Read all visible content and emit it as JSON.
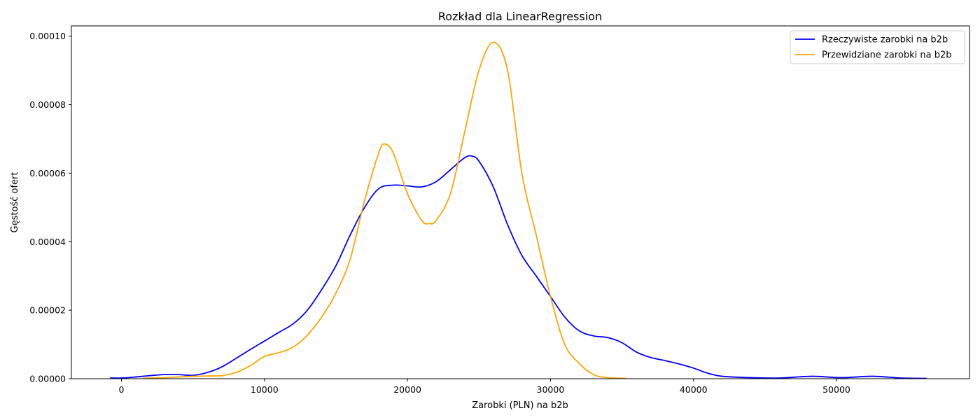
{
  "chart_data": {
    "type": "line",
    "title": "Rozkład dla LinearRegression",
    "xlabel": "Zarobki (PLN) na b2b",
    "ylabel": "Gęstość ofert",
    "xlim": [
      -3500,
      59300
    ],
    "ylim": [
      0,
      0.000103
    ],
    "x_ticks": [
      0,
      10000,
      20000,
      30000,
      40000,
      50000
    ],
    "x_tick_labels": [
      "0",
      "10000",
      "20000",
      "30000",
      "40000",
      "50000"
    ],
    "y_ticks": [
      0,
      2e-05,
      4e-05,
      6e-05,
      8e-05,
      0.0001
    ],
    "y_tick_labels": [
      "0.00000",
      "0.00002",
      "0.00004",
      "0.00006",
      "0.00008",
      "0.00010"
    ],
    "grid": false,
    "legend_position": "top-right",
    "series": [
      {
        "name": "Rzeczywiste zarobki na b2b",
        "color": "#0000ff",
        "points": [
          [
            -800,
            2e-07
          ],
          [
            0,
            2e-07
          ],
          [
            1000,
            5e-07
          ],
          [
            2000,
            9e-07
          ],
          [
            3000,
            1.2e-06
          ],
          [
            4000,
            1.2e-06
          ],
          [
            5000,
            1e-06
          ],
          [
            6000,
            1.8e-06
          ],
          [
            7000,
            3.4e-06
          ],
          [
            8000,
            5.9e-06
          ],
          [
            9000,
            8.5e-06
          ],
          [
            10000,
            1.1e-05
          ],
          [
            11000,
            1.35e-05
          ],
          [
            12000,
            1.6e-05
          ],
          [
            13000,
            2e-05
          ],
          [
            14000,
            2.6e-05
          ],
          [
            15000,
            3.3e-05
          ],
          [
            16000,
            4.2e-05
          ],
          [
            17000,
            5e-05
          ],
          [
            18000,
            5.55e-05
          ],
          [
            19000,
            5.65e-05
          ],
          [
            20000,
            5.63e-05
          ],
          [
            21000,
            5.6e-05
          ],
          [
            22000,
            5.75e-05
          ],
          [
            23000,
            6.1e-05
          ],
          [
            24000,
            6.45e-05
          ],
          [
            24500,
            6.5e-05
          ],
          [
            25000,
            6.35e-05
          ],
          [
            26000,
            5.6e-05
          ],
          [
            27000,
            4.5e-05
          ],
          [
            28000,
            3.6e-05
          ],
          [
            29000,
            3e-05
          ],
          [
            30000,
            2.4e-05
          ],
          [
            31000,
            1.8e-05
          ],
          [
            32000,
            1.4e-05
          ],
          [
            33000,
            1.25e-05
          ],
          [
            34000,
            1.2e-05
          ],
          [
            35000,
            1.05e-05
          ],
          [
            36000,
            7.8e-06
          ],
          [
            37000,
            6.2e-06
          ],
          [
            38000,
            5.3e-06
          ],
          [
            39000,
            4.3e-06
          ],
          [
            40000,
            3.1e-06
          ],
          [
            41000,
            1.6e-06
          ],
          [
            42000,
            7e-07
          ],
          [
            44000,
            3e-07
          ],
          [
            46000,
            2e-07
          ],
          [
            48300,
            7e-07
          ],
          [
            50300,
            3e-07
          ],
          [
            52500,
            7e-07
          ],
          [
            54500,
            2e-07
          ],
          [
            56300,
            1e-07
          ]
        ]
      },
      {
        "name": "Przewidziane zarobki na b2b",
        "color": "#ffa500",
        "points": [
          [
            1500,
            1e-07
          ],
          [
            2000,
            2e-07
          ],
          [
            3000,
            3e-07
          ],
          [
            4000,
            5e-07
          ],
          [
            5000,
            7e-07
          ],
          [
            6000,
            8e-07
          ],
          [
            7000,
            9e-07
          ],
          [
            8000,
            1.8e-06
          ],
          [
            9000,
            3.8e-06
          ],
          [
            10000,
            6.5e-06
          ],
          [
            11000,
            7.6e-06
          ],
          [
            12000,
            9.2e-06
          ],
          [
            13000,
            1.27e-05
          ],
          [
            14000,
            1.8e-05
          ],
          [
            15000,
            2.5e-05
          ],
          [
            16000,
            3.5e-05
          ],
          [
            17000,
            5.2e-05
          ],
          [
            18000,
            6.6e-05
          ],
          [
            18400,
            6.85e-05
          ],
          [
            19000,
            6.6e-05
          ],
          [
            20000,
            5.4e-05
          ],
          [
            21000,
            4.62e-05
          ],
          [
            21500,
            4.53e-05
          ],
          [
            22000,
            4.62e-05
          ],
          [
            23000,
            5.4e-05
          ],
          [
            24000,
            7.2e-05
          ],
          [
            25000,
            9e-05
          ],
          [
            26000,
            9.82e-05
          ],
          [
            27000,
            9e-05
          ],
          [
            28000,
            6e-05
          ],
          [
            29000,
            4.2e-05
          ],
          [
            30000,
            2.4e-05
          ],
          [
            31000,
            1e-05
          ],
          [
            32000,
            4.5e-06
          ],
          [
            33000,
            1.2e-06
          ],
          [
            34000,
            3e-07
          ],
          [
            35300,
            1e-07
          ]
        ]
      }
    ]
  }
}
